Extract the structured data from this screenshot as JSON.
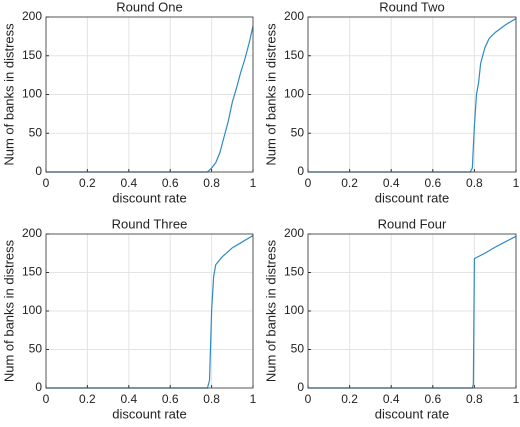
{
  "chart_data": [
    {
      "type": "line",
      "title": "Round One",
      "xlabel": "discount rate",
      "ylabel": "Num of banks in distress",
      "x": [
        0,
        0.78,
        0.8,
        0.82,
        0.84,
        0.86,
        0.88,
        0.9,
        0.92,
        0.94,
        0.96,
        0.98,
        1
      ],
      "series": [
        {
          "color": "#2f8ac4",
          "values": [
            0,
            0,
            5,
            12,
            25,
            45,
            65,
            90,
            108,
            128,
            145,
            165,
            188
          ]
        }
      ],
      "xlim": [
        0,
        1
      ],
      "ylim": [
        0,
        200
      ],
      "xticks": [
        0,
        0.2,
        0.4,
        0.6,
        0.8,
        1
      ],
      "yticks": [
        0,
        50,
        100,
        150,
        200
      ],
      "grid": true
    },
    {
      "type": "line",
      "title": "Round Two",
      "xlabel": "discount rate",
      "ylabel": "Num of banks in distress",
      "x": [
        0,
        0.78,
        0.79,
        0.8,
        0.81,
        0.82,
        0.83,
        0.85,
        0.87,
        0.9,
        0.95,
        1
      ],
      "series": [
        {
          "color": "#2f8ac4",
          "values": [
            0,
            0,
            5,
            60,
            100,
            115,
            140,
            160,
            172,
            180,
            190,
            198
          ]
        }
      ],
      "xlim": [
        0,
        1
      ],
      "ylim": [
        0,
        200
      ],
      "xticks": [
        0,
        0.2,
        0.4,
        0.6,
        0.8,
        1
      ],
      "yticks": [
        0,
        50,
        100,
        150,
        200
      ],
      "grid": true
    },
    {
      "type": "line",
      "title": "Round Three",
      "xlabel": "discount rate",
      "ylabel": "Num of banks in distress",
      "x": [
        0,
        0.78,
        0.79,
        0.8,
        0.81,
        0.82,
        0.85,
        0.9,
        0.95,
        1
      ],
      "series": [
        {
          "color": "#2f8ac4",
          "values": [
            0,
            0,
            10,
            100,
            145,
            160,
            170,
            182,
            190,
            198
          ]
        }
      ],
      "xlim": [
        0,
        1
      ],
      "ylim": [
        0,
        200
      ],
      "xticks": [
        0,
        0.2,
        0.4,
        0.6,
        0.8,
        1
      ],
      "yticks": [
        0,
        50,
        100,
        150,
        200
      ],
      "grid": true
    },
    {
      "type": "line",
      "title": "Round Four",
      "xlabel": "discount rate",
      "ylabel": "Num of banks in distress",
      "x": [
        0,
        0.79,
        0.795,
        0.8,
        0.85,
        0.9,
        0.95,
        1
      ],
      "series": [
        {
          "color": "#2f8ac4",
          "values": [
            0,
            0,
            5,
            168,
            175,
            183,
            190,
            197
          ]
        }
      ],
      "xlim": [
        0,
        1
      ],
      "ylim": [
        0,
        200
      ],
      "xticks": [
        0,
        0.2,
        0.4,
        0.6,
        0.8,
        1
      ],
      "yticks": [
        0,
        50,
        100,
        150,
        200
      ],
      "grid": true
    }
  ]
}
